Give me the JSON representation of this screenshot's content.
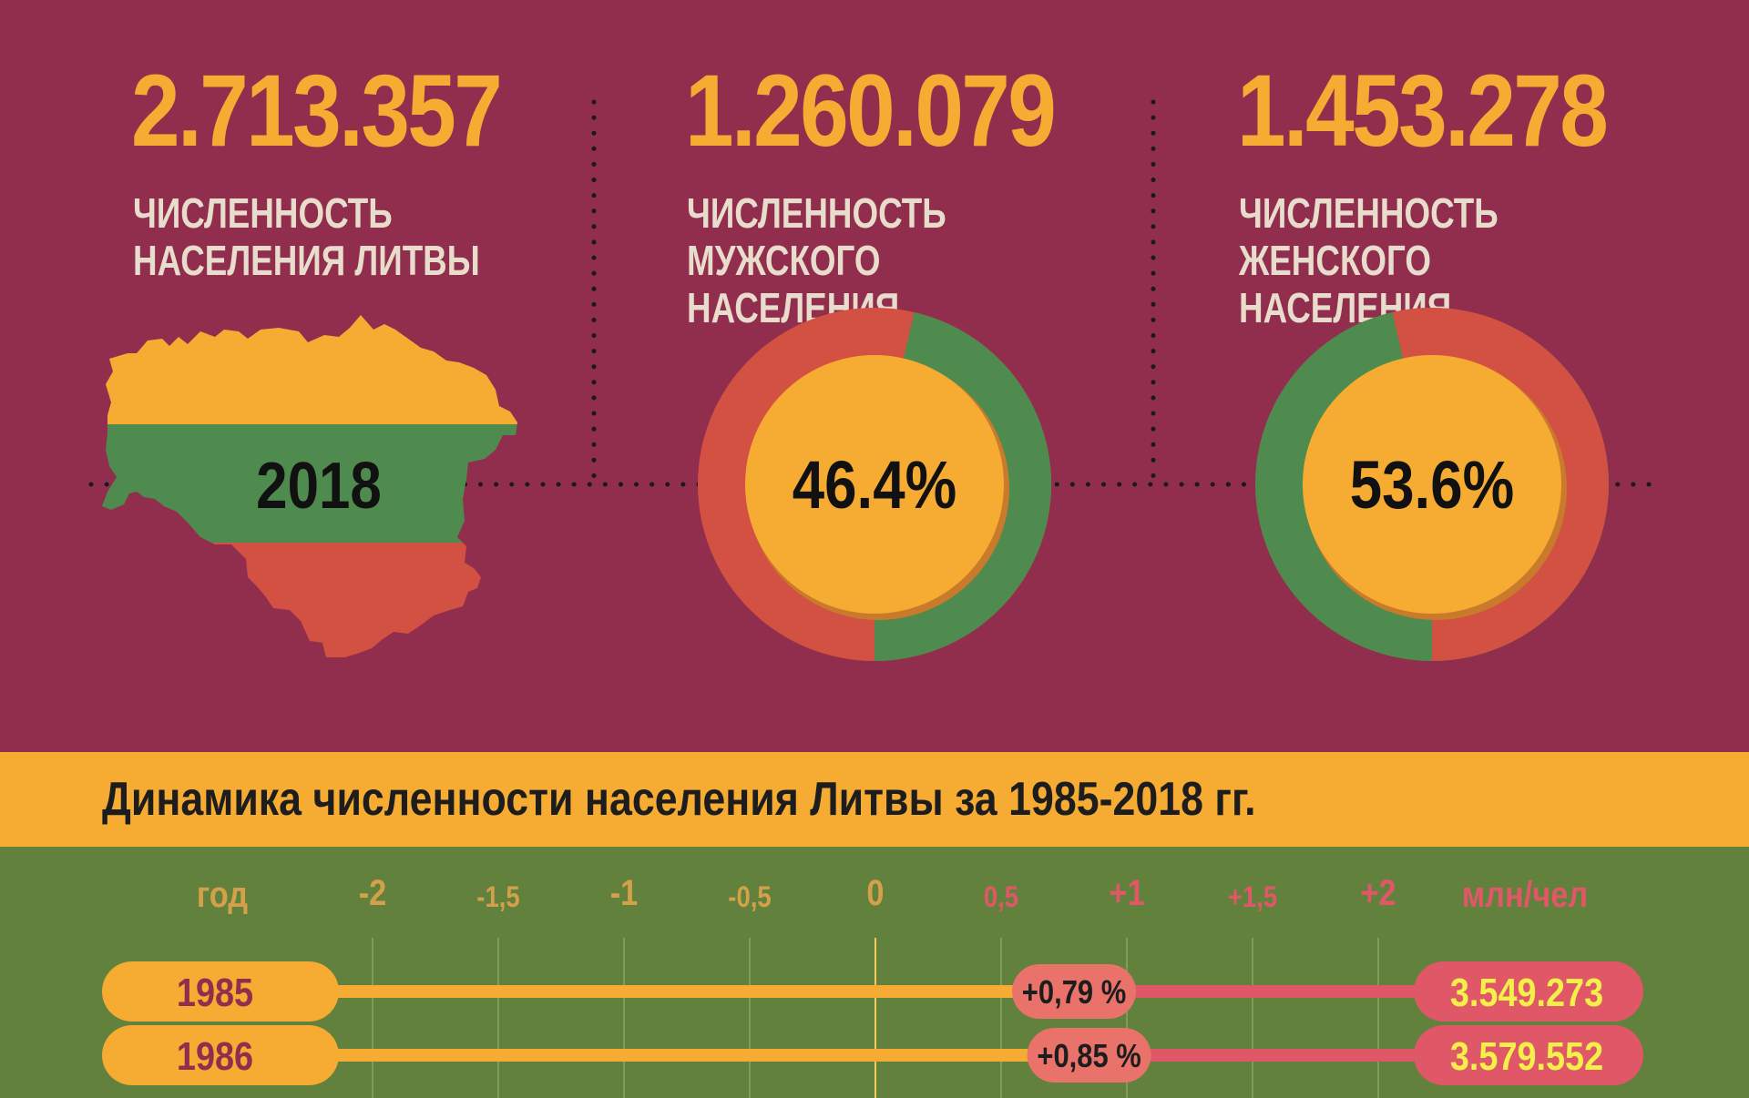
{
  "stats": {
    "total": {
      "value": "2.713.357",
      "label": "ЧИСЛЕННОСТЬ НАСЕЛЕНИЯ ЛИТВЫ",
      "year": "2018"
    },
    "male": {
      "value": "1.260.079",
      "label": "ЧИСЛЕННОСТЬ МУЖСКОГО НАСЕЛЕНИЯ",
      "percent": 46.4,
      "percent_label": "46.4%"
    },
    "female": {
      "value": "1.453.278",
      "label": "ЧИСЛЕННОСТЬ ЖЕНСКОГО НАСЕЛЕНИЯ",
      "percent": 53.6,
      "percent_label": "53.6%"
    }
  },
  "colors": {
    "background": "#922e4d",
    "yellow": "#f6ac33",
    "green": "#4f8a4f",
    "red": "#d35142",
    "pink": "#e05768",
    "olive": "#61813c",
    "value_text": "#f3f04a"
  },
  "banner": {
    "title": "Динамика численности населения Литвы за 1985-2018 гг."
  },
  "chart_data": {
    "type": "bar",
    "title": "Динамика численности населения Литвы за 1985-2018 гг.",
    "category_header": "год",
    "unit_header": "млн/чел",
    "xlim": [
      -2,
      2
    ],
    "ticks": [
      {
        "value": -2,
        "label": "-2",
        "major": true
      },
      {
        "value": -1.5,
        "label": "-1,5",
        "major": false
      },
      {
        "value": -1,
        "label": "-1",
        "major": true
      },
      {
        "value": -0.5,
        "label": "-0,5",
        "major": false
      },
      {
        "value": 0,
        "label": "0",
        "major": true
      },
      {
        "value": 0.5,
        "label": "0,5",
        "major": false
      },
      {
        "value": 1,
        "label": "+1",
        "major": true
      },
      {
        "value": 1.5,
        "label": "+1,5",
        "major": false
      },
      {
        "value": 2,
        "label": "+2",
        "major": true
      }
    ],
    "rows": [
      {
        "year": "1985",
        "change": 0.79,
        "change_label": "+0,79 %",
        "population": "3.549.273"
      },
      {
        "year": "1986",
        "change": 0.85,
        "change_label": "+0,85 %",
        "population": "3.579.552"
      }
    ]
  }
}
